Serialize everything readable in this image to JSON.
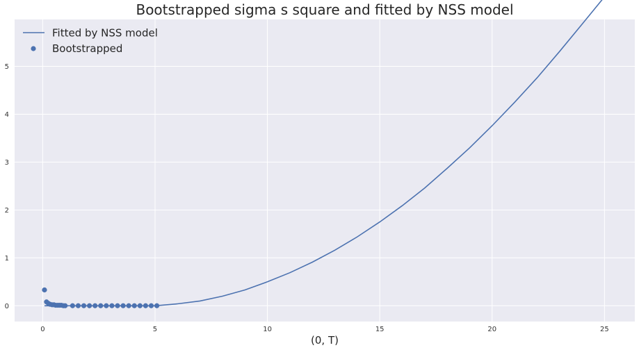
{
  "chart_data": {
    "type": "line",
    "title": "Bootstrapped sigma s square and fitted by NSS model",
    "xlabel": "(0, T)",
    "ylabel": "",
    "xlim": [
      -1.25,
      26.35
    ],
    "ylim": [
      -0.33,
      5.98
    ],
    "xticks": [
      0,
      5,
      10,
      15,
      20,
      25
    ],
    "yticks": [
      0,
      1,
      2,
      3,
      4,
      5
    ],
    "grid": true,
    "legend_position": "top-left",
    "colors": {
      "series": "#4c72b0",
      "background": "#eaeaf2",
      "grid": "#ffffff"
    },
    "series": [
      {
        "name": "Fitted by NSS model",
        "type": "line",
        "x": [
          0.08,
          1,
          2,
          3,
          4,
          5,
          6,
          7,
          8,
          9,
          10,
          11,
          12,
          13,
          14,
          15,
          16,
          17,
          18,
          19,
          20,
          21,
          22,
          23,
          24,
          25.08
        ],
        "y": [
          0.0,
          0.0,
          0.0,
          0.0,
          0.0,
          0.0,
          0.04,
          0.1,
          0.2,
          0.33,
          0.5,
          0.69,
          0.91,
          1.16,
          1.44,
          1.75,
          2.09,
          2.46,
          2.87,
          3.3,
          3.76,
          4.25,
          4.76,
          5.31,
          5.88,
          6.5
        ]
      },
      {
        "name": "Bootstrapped",
        "type": "scatter",
        "x": [
          0.08,
          0.17,
          0.25,
          0.33,
          0.42,
          0.5,
          0.58,
          0.67,
          0.75,
          0.83,
          0.92,
          1.0,
          1.33,
          1.58,
          1.83,
          2.08,
          2.33,
          2.58,
          2.83,
          3.08,
          3.33,
          3.58,
          3.83,
          4.08,
          4.33,
          4.58,
          4.83,
          5.08
        ],
        "y": [
          0.33,
          0.08,
          0.05,
          0.03,
          0.02,
          0.02,
          0.01,
          0.01,
          0.01,
          0.01,
          0.0,
          0.0,
          0.0,
          0.0,
          0.0,
          0.0,
          0.0,
          0.0,
          0.0,
          0.0,
          0.0,
          0.0,
          0.0,
          0.0,
          0.0,
          0.0,
          0.0,
          0.0
        ]
      }
    ]
  }
}
